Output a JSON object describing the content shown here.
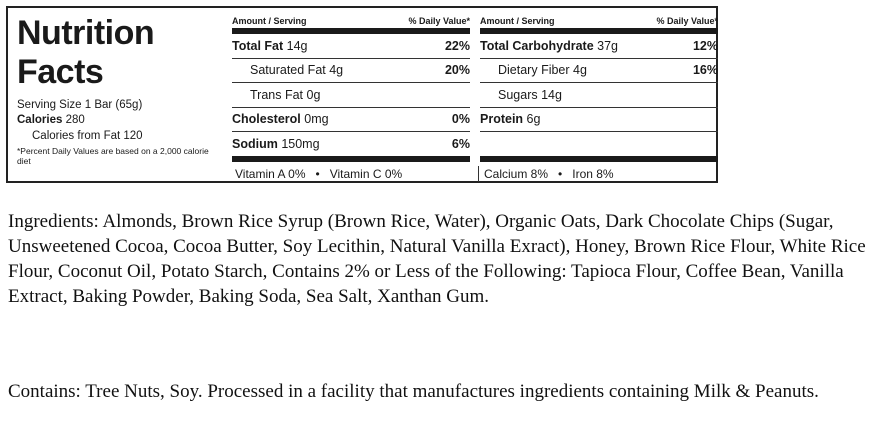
{
  "label": {
    "title_line1": "Nutrition",
    "title_line2": "Facts",
    "serving_size": "Serving Size 1 Bar (65g)",
    "calories_label": "Calories",
    "calories_value": "280",
    "calories_from_fat": "Calories from Fat 120",
    "footnote": "*Percent Daily Values are based on a 2,000 calorie diet",
    "header_amount": "Amount / Serving",
    "header_dv": "% Daily Value*",
    "left_rows": [
      {
        "name": "Total Fat",
        "amount": "14g",
        "dv": "22%",
        "bold": true
      },
      {
        "name": "Saturated Fat",
        "amount": "4g",
        "dv": "20%",
        "bold": false
      },
      {
        "name": "Trans Fat",
        "amount": "0g",
        "dv": "",
        "bold": false
      },
      {
        "name": "Cholesterol",
        "amount": "0mg",
        "dv": "0%",
        "bold": true
      },
      {
        "name": "Sodium",
        "amount": "150mg",
        "dv": "6%",
        "bold": true
      }
    ],
    "right_rows": [
      {
        "name": "Total Carbohydrate",
        "amount": "37g",
        "dv": "12%",
        "bold": true
      },
      {
        "name": "Dietary Fiber",
        "amount": "4g",
        "dv": "16%",
        "bold": false
      },
      {
        "name": "Sugars",
        "amount": "14g",
        "dv": "",
        "bold": false
      },
      {
        "name": "Protein",
        "amount": "6g",
        "dv": "",
        "bold": true
      }
    ],
    "vitamins": {
      "vitamin_a": "Vitamin A 0%",
      "vitamin_c": "Vitamin C 0%",
      "calcium": "Calcium 8%",
      "iron": "Iron 8%",
      "separator": "•"
    }
  },
  "ingredients_text": "Ingredients: Almonds, Brown Rice Syrup (Brown Rice, Water), Organic Oats, Dark Chocolate Chips (Sugar, Unsweetened Cocoa, Cocoa Butter, Soy Lecithin, Natural Vanilla Exract), Honey, Brown Rice Flour, White Rice Flour, Coconut Oil, Potato Starch, Contains 2% or Less of the Following: Tapioca Flour, Coffee Bean, Vanilla Extract, Baking Powder, Baking Soda, Sea Salt, Xanthan Gum.",
  "allergen_text": "Contains: Tree Nuts, Soy. Processed in a facility that manufactures ingredients containing Milk & Peanuts."
}
